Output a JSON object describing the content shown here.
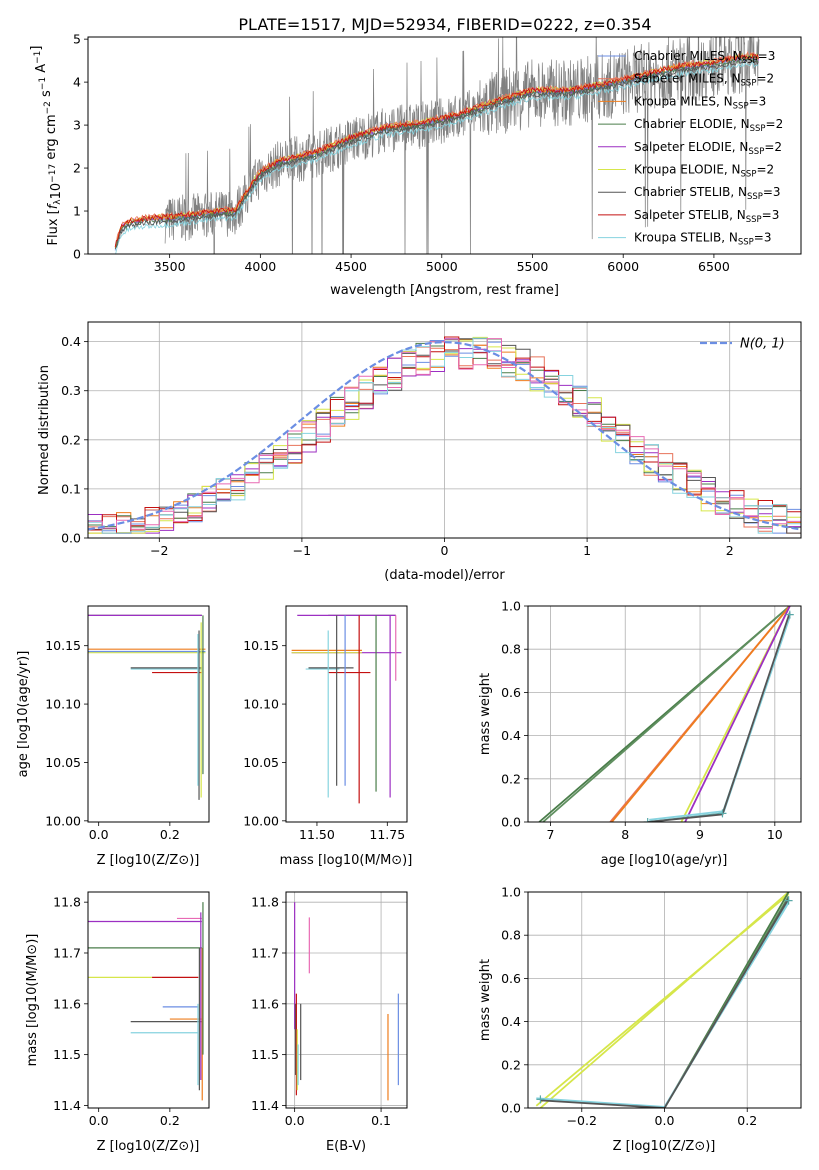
{
  "figure": {
    "title": "PLATE=1517, MJD=52934, FIBERID=0222, z=0.354"
  },
  "colors": {
    "chabrier_miles": "#6b8ee3",
    "salpeter_miles": "#e8735a",
    "kroupa_miles": "#ee7d1e",
    "chabrier_elodie": "#4a7d4a",
    "salpeter_elodie": "#9c2fc2",
    "kroupa_elodie": "#d6e64a",
    "chabrier_stelib": "#555555",
    "salpeter_stelib": "#c41010",
    "kroupa_stelib": "#86d3df",
    "pink": "#e86ab4",
    "green2": "#5f8f5f",
    "teal": "#5aa8a8",
    "data": "#808080",
    "normal_curve": "#6b8ee3"
  },
  "chart_data": [
    {
      "id": "spectrum",
      "type": "line",
      "xlabel": "wavelength [Angstrom, rest frame]",
      "ylabel": "Flux [f_λ10^-17 erg cm^-2 s^-1 A^-1]",
      "xlim": [
        3050,
        6980
      ],
      "ylim": [
        0,
        5.05
      ],
      "xticks": [
        3500,
        4000,
        4500,
        5000,
        5500,
        6000,
        6500
      ],
      "yticks": [
        0,
        1,
        2,
        3,
        4,
        5
      ],
      "legend_placement": "right",
      "legend": [
        {
          "base": "Chabrier MILES, N",
          "sub": "SSP",
          "tail": "=3",
          "color_key": "chabrier_miles"
        },
        {
          "base": "Salpeter MILES, N",
          "sub": "SSP",
          "tail": "=2",
          "color_key": "salpeter_miles"
        },
        {
          "base": "Kroupa MILES, N",
          "sub": "SSP",
          "tail": "=3",
          "color_key": "kroupa_miles"
        },
        {
          "base": "Chabrier ELODIE, N",
          "sub": "SSP",
          "tail": "=2",
          "color_key": "chabrier_elodie"
        },
        {
          "base": "Salpeter ELODIE, N",
          "sub": "SSP",
          "tail": "=2",
          "color_key": "salpeter_elodie"
        },
        {
          "base": "Kroupa ELODIE, N",
          "sub": "SSP",
          "tail": "=2",
          "color_key": "kroupa_elodie"
        },
        {
          "base": "Chabrier STELIB, N",
          "sub": "SSP",
          "tail": "=3",
          "color_key": "chabrier_stelib"
        },
        {
          "base": "Salpeter STELIB, N",
          "sub": "SSP",
          "tail": "=3",
          "color_key": "salpeter_stelib"
        },
        {
          "base": "Kroupa STELIB, N",
          "sub": "SSP",
          "tail": "=3",
          "color_key": "kroupa_stelib"
        }
      ],
      "continuum": [
        [
          3200,
          0.1
        ],
        [
          3230,
          0.55
        ],
        [
          3280,
          0.7
        ],
        [
          3350,
          0.75
        ],
        [
          3420,
          0.78
        ],
        [
          3500,
          0.8
        ],
        [
          3600,
          0.85
        ],
        [
          3700,
          0.9
        ],
        [
          3800,
          0.95
        ],
        [
          3860,
          0.95
        ],
        [
          3950,
          1.55
        ],
        [
          4000,
          1.85
        ],
        [
          4100,
          2.1
        ],
        [
          4300,
          2.3
        ],
        [
          4500,
          2.65
        ],
        [
          4700,
          2.9
        ],
        [
          4900,
          3.0
        ],
        [
          5100,
          3.2
        ],
        [
          5300,
          3.5
        ],
        [
          5500,
          3.75
        ],
        [
          5700,
          3.75
        ],
        [
          5900,
          3.9
        ],
        [
          6100,
          4.1
        ],
        [
          6300,
          4.3
        ],
        [
          6500,
          4.4
        ],
        [
          6700,
          4.55
        ],
        [
          6750,
          4.5
        ]
      ]
    },
    {
      "id": "residuals",
      "type": "histogram",
      "xlabel": "(data-model)/error",
      "ylabel": "Normed distribution",
      "xlim": [
        -2.5,
        2.5
      ],
      "ylim": [
        0,
        0.44
      ],
      "xticks": [
        -2,
        -1,
        0,
        1,
        2
      ],
      "yticks": [
        0.0,
        0.1,
        0.2,
        0.3,
        0.4
      ],
      "grid": true,
      "legend_placement": "top-right",
      "normal_label": "N(0, 1)",
      "bin_width": 0.1
    },
    {
      "id": "age_vs_Z",
      "type": "errorbar",
      "xlabel": "Z [log10(Z/Z⊙)]",
      "ylabel": "age [log10(age/yr)]",
      "xlim": [
        -0.03,
        0.31
      ],
      "ylim": [
        9.999,
        10.184
      ],
      "xticks": [
        0.0,
        0.2
      ],
      "yticks": [
        10.0,
        10.05,
        10.1,
        10.15
      ]
    },
    {
      "id": "age_vs_mass",
      "type": "errorbar",
      "xlabel": "mass [log10(M/M⊙)]",
      "ylabel": "",
      "xlim": [
        11.39,
        11.82
      ],
      "ylim": [
        9.999,
        10.184
      ],
      "xticks": [
        11.5,
        11.75
      ],
      "yticks": [
        10.0,
        10.05,
        10.1,
        10.15
      ]
    },
    {
      "id": "massweight_vs_age",
      "type": "line",
      "xlabel": "age [log10(age/yr)]",
      "ylabel": "mass weight",
      "xlim": [
        6.7,
        10.35
      ],
      "ylim": [
        0,
        1.0
      ],
      "xticks": [
        7,
        8,
        9,
        10
      ],
      "yticks": [
        0.0,
        0.2,
        0.4,
        0.6,
        0.8,
        1.0
      ],
      "grid": true
    },
    {
      "id": "mass_vs_Z",
      "type": "errorbar",
      "xlabel": "Z [log10(Z/Z⊙)]",
      "ylabel": "mass [log10(M/M⊙)]",
      "xlim": [
        -0.03,
        0.31
      ],
      "ylim": [
        11.395,
        11.82
      ],
      "xticks": [
        0.0,
        0.2
      ],
      "yticks": [
        11.4,
        11.5,
        11.6,
        11.7,
        11.8
      ]
    },
    {
      "id": "mass_vs_ebv",
      "type": "errorbar",
      "xlabel": "E(B-V)",
      "ylabel": "",
      "xlim": [
        -0.01,
        0.13
      ],
      "ylim": [
        11.395,
        11.82
      ],
      "xticks": [
        0.0,
        0.1
      ],
      "yticks": [
        11.4,
        11.5,
        11.6,
        11.7,
        11.8
      ],
      "grid": true
    },
    {
      "id": "massweight_vs_Z",
      "type": "line",
      "xlabel": "Z [log10(Z/Z⊙)]",
      "ylabel": "mass weight",
      "xlim": [
        -0.33,
        0.33
      ],
      "ylim": [
        0,
        1.0
      ],
      "xticks": [
        -0.2,
        0.0,
        0.2
      ],
      "yticks": [
        0.0,
        0.2,
        0.4,
        0.6,
        0.8,
        1.0
      ],
      "grid": true
    }
  ]
}
